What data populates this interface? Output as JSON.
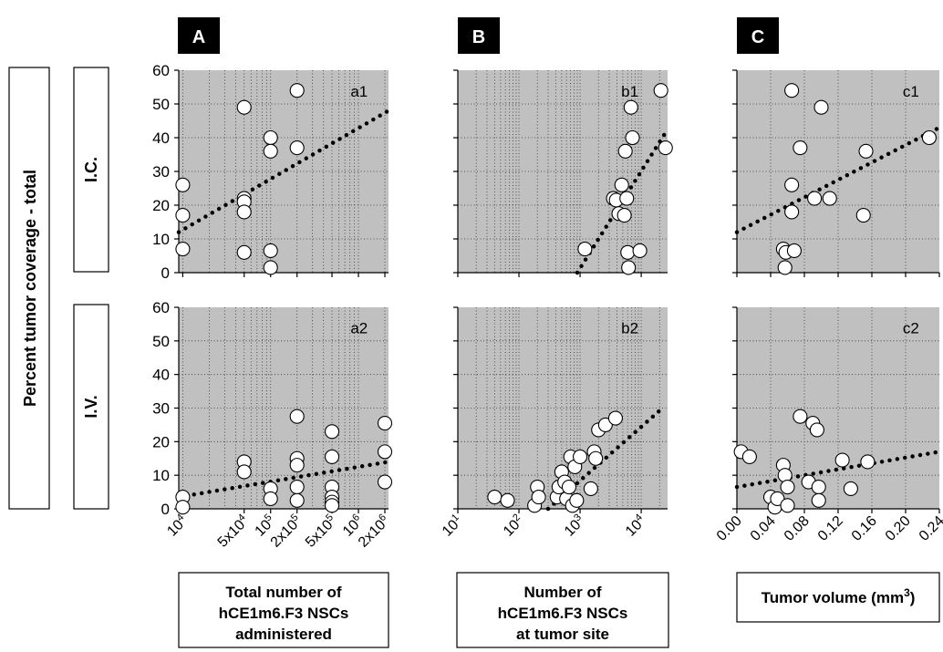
{
  "figure": {
    "column_labels": [
      "A",
      "B",
      "C"
    ],
    "row_labels": [
      "I.C.",
      "I.V."
    ],
    "y_axis_title": "Percent tumor coverage - total",
    "x_axis_titles": [
      [
        "Total number of",
        "hCE1m6.F3 NSCs",
        "administered"
      ],
      [
        "Number of",
        "hCE1m6.F3 NSCs",
        "at tumor site"
      ],
      [
        "Tumor volume (mm",
        "3",
        ")"
      ]
    ],
    "y_ticks": [
      "0",
      "10",
      "20",
      "30",
      "40",
      "50",
      "60"
    ],
    "x_ticks": [
      [
        {
          "v": 10000,
          "label": "10",
          "sup": "4"
        },
        {
          "v": 50000,
          "label": "5x10",
          "sup": "4"
        },
        {
          "v": 100000,
          "label": "10",
          "sup": "5"
        },
        {
          "v": 200000,
          "label": "2x10",
          "sup": "5"
        },
        {
          "v": 500000,
          "label": "5x10",
          "sup": "5"
        },
        {
          "v": 1000000,
          "label": "10",
          "sup": "6"
        },
        {
          "v": 2000000,
          "label": "2x10",
          "sup": "6"
        }
      ],
      [
        {
          "v": 10,
          "label": "10",
          "sup": "1"
        },
        {
          "v": 100,
          "label": "10",
          "sup": "2"
        },
        {
          "v": 1000,
          "label": "10",
          "sup": "3"
        },
        {
          "v": 10000,
          "label": "10",
          "sup": "4"
        }
      ],
      [
        {
          "v": 0.0,
          "label": "0.00",
          "sup": ""
        },
        {
          "v": 0.04,
          "label": "0.04",
          "sup": ""
        },
        {
          "v": 0.08,
          "label": "0.08",
          "sup": ""
        },
        {
          "v": 0.12,
          "label": "0.12",
          "sup": ""
        },
        {
          "v": 0.16,
          "label": "0.16",
          "sup": ""
        },
        {
          "v": 0.2,
          "label": "0.20",
          "sup": ""
        },
        {
          "v": 0.24,
          "label": "0.24",
          "sup": ""
        }
      ]
    ]
  },
  "colors": {
    "panel_bg": "#c0c0c0",
    "marker_fill": "#ffffff",
    "marker_stroke": "#000000",
    "trend": "#000000",
    "grid": "#333333"
  },
  "chart_data": [
    {
      "panel": "a1",
      "type": "scatter",
      "x_scale": "log",
      "xlim": [
        9000,
        2200000
      ],
      "ylim": [
        0,
        60
      ],
      "grid": true,
      "points": [
        [
          10000,
          26
        ],
        [
          10000,
          17
        ],
        [
          10000,
          7
        ],
        [
          50000,
          49
        ],
        [
          50000,
          22
        ],
        [
          50000,
          21
        ],
        [
          50000,
          18
        ],
        [
          50000,
          6
        ],
        [
          100000,
          40
        ],
        [
          100000,
          36
        ],
        [
          100000,
          6.5
        ],
        [
          100000,
          1.5
        ],
        [
          200000,
          54
        ],
        [
          200000,
          37
        ]
      ],
      "trend": [
        [
          9000,
          12
        ],
        [
          2200000,
          48
        ]
      ]
    },
    {
      "panel": "b1",
      "type": "scatter",
      "x_scale": "log",
      "xlim": [
        10,
        27000
      ],
      "ylim": [
        0,
        60
      ],
      "grid": true,
      "points": [
        [
          1200,
          7
        ],
        [
          3500,
          22
        ],
        [
          3900,
          21.5
        ],
        [
          4300,
          17.5
        ],
        [
          4800,
          26
        ],
        [
          5300,
          17
        ],
        [
          5500,
          36
        ],
        [
          5800,
          22
        ],
        [
          6000,
          6
        ],
        [
          6200,
          1.5
        ],
        [
          6800,
          49
        ],
        [
          7200,
          40
        ],
        [
          9500,
          6.5
        ],
        [
          21000,
          54
        ],
        [
          25000,
          37
        ]
      ],
      "trend": [
        [
          900,
          0
        ],
        [
          24000,
          41
        ]
      ]
    },
    {
      "panel": "c1",
      "type": "scatter",
      "x_scale": "linear",
      "xlim": [
        0,
        0.24
      ],
      "ylim": [
        0,
        60
      ],
      "grid": true,
      "points": [
        [
          0.055,
          7
        ],
        [
          0.057,
          1.5
        ],
        [
          0.058,
          6
        ],
        [
          0.065,
          54
        ],
        [
          0.065,
          26
        ],
        [
          0.065,
          18
        ],
        [
          0.068,
          6.5
        ],
        [
          0.075,
          37
        ],
        [
          0.092,
          22
        ],
        [
          0.1,
          49
        ],
        [
          0.11,
          22
        ],
        [
          0.15,
          17
        ],
        [
          0.153,
          36
        ],
        [
          0.228,
          40
        ]
      ],
      "trend": [
        [
          0,
          12
        ],
        [
          0.24,
          43
        ]
      ]
    },
    {
      "panel": "a2",
      "type": "scatter",
      "x_scale": "log",
      "xlim": [
        9000,
        2200000
      ],
      "ylim": [
        0,
        60
      ],
      "grid": true,
      "points": [
        [
          10000,
          3.5
        ],
        [
          10000,
          0.5
        ],
        [
          50000,
          14
        ],
        [
          50000,
          11
        ],
        [
          100000,
          6
        ],
        [
          100000,
          3
        ],
        [
          200000,
          27.5
        ],
        [
          200000,
          15
        ],
        [
          200000,
          13
        ],
        [
          200000,
          6.5
        ],
        [
          200000,
          2.5
        ],
        [
          500000,
          23
        ],
        [
          500000,
          15.5
        ],
        [
          500000,
          6.5
        ],
        [
          500000,
          3.5
        ],
        [
          500000,
          2
        ],
        [
          500000,
          1
        ],
        [
          2000000,
          25.5
        ],
        [
          2000000,
          17
        ],
        [
          2000000,
          8
        ]
      ],
      "trend": [
        [
          9000,
          3.5
        ],
        [
          2200000,
          14
        ]
      ]
    },
    {
      "panel": "b2",
      "type": "scatter",
      "x_scale": "log",
      "xlim": [
        10,
        27000
      ],
      "ylim": [
        0,
        60
      ],
      "grid": true,
      "points": [
        [
          40,
          3.5
        ],
        [
          65,
          2.5
        ],
        [
          180,
          1
        ],
        [
          200,
          6.5
        ],
        [
          210,
          3.5
        ],
        [
          420,
          3.5
        ],
        [
          450,
          6.5
        ],
        [
          500,
          11
        ],
        [
          560,
          8
        ],
        [
          600,
          3
        ],
        [
          660,
          6.5
        ],
        [
          700,
          15.5
        ],
        [
          750,
          1
        ],
        [
          820,
          12.5
        ],
        [
          880,
          2.5
        ],
        [
          1000,
          15.5
        ],
        [
          1500,
          6
        ],
        [
          1700,
          17
        ],
        [
          1800,
          15
        ],
        [
          2000,
          23.5
        ],
        [
          2600,
          25
        ],
        [
          3800,
          27
        ]
      ],
      "trend": [
        [
          300,
          0
        ],
        [
          24000,
          30.5
        ]
      ]
    },
    {
      "panel": "c2",
      "type": "scatter",
      "x_scale": "linear",
      "xlim": [
        0,
        0.24
      ],
      "ylim": [
        0,
        60
      ],
      "grid": true,
      "points": [
        [
          0.005,
          17
        ],
        [
          0.015,
          15.5
        ],
        [
          0.04,
          3.5
        ],
        [
          0.045,
          0.5
        ],
        [
          0.048,
          3
        ],
        [
          0.055,
          13
        ],
        [
          0.057,
          10
        ],
        [
          0.06,
          6.5
        ],
        [
          0.06,
          1
        ],
        [
          0.075,
          27.5
        ],
        [
          0.085,
          8
        ],
        [
          0.09,
          25.5
        ],
        [
          0.095,
          23.5
        ],
        [
          0.097,
          6.5
        ],
        [
          0.097,
          2.5
        ],
        [
          0.125,
          14.5
        ],
        [
          0.135,
          6
        ],
        [
          0.155,
          14
        ]
      ],
      "trend": [
        [
          0,
          6.5
        ],
        [
          0.24,
          17
        ]
      ]
    }
  ]
}
